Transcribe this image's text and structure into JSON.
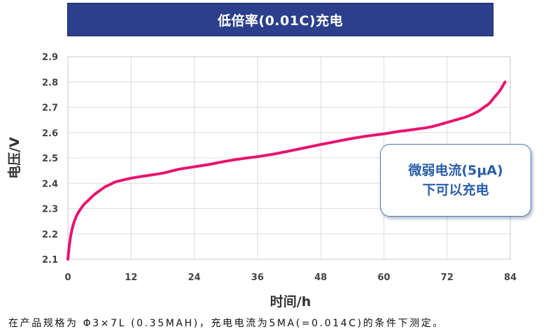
{
  "title": "低倍率(0.01C)充电",
  "footnote": "在产品规格为 Φ3×7L (0.35MAH)，充电电流为5MA(=0.014C)的条件下测定。",
  "callout": {
    "line1": "微弱电流(5μA)",
    "line2": "下可以充电"
  },
  "colors": {
    "title_bg": "#2b3f8c",
    "line": "#e8136f",
    "callout_text": "#2a5fa8"
  },
  "chart_data": {
    "type": "line",
    "xlabel": "时间/h",
    "ylabel": "电压/V",
    "xlim": [
      0,
      84
    ],
    "ylim": [
      2.1,
      2.9
    ],
    "xticks": [
      0,
      12,
      24,
      36,
      48,
      60,
      72,
      84
    ],
    "yticks": [
      2.1,
      2.2,
      2.3,
      2.4,
      2.5,
      2.6,
      2.7,
      2.8,
      2.9
    ],
    "grid": true,
    "series": [
      {
        "x": [
          0,
          0.3,
          0.6,
          1,
          1.5,
          2,
          3,
          4,
          5,
          6,
          7,
          8,
          9,
          10,
          12,
          15,
          18,
          21,
          24,
          27,
          30,
          33,
          36,
          39,
          42,
          45,
          48,
          51,
          54,
          57,
          60,
          63,
          66,
          69,
          72,
          74,
          76,
          78,
          79,
          80,
          81,
          82,
          83
        ],
        "y": [
          2.1,
          2.16,
          2.2,
          2.235,
          2.265,
          2.285,
          2.315,
          2.335,
          2.355,
          2.37,
          2.385,
          2.395,
          2.405,
          2.41,
          2.42,
          2.43,
          2.44,
          2.455,
          2.465,
          2.475,
          2.487,
          2.497,
          2.505,
          2.515,
          2.527,
          2.54,
          2.553,
          2.565,
          2.577,
          2.587,
          2.595,
          2.605,
          2.613,
          2.623,
          2.64,
          2.652,
          2.665,
          2.685,
          2.7,
          2.715,
          2.74,
          2.765,
          2.8
        ]
      }
    ]
  }
}
